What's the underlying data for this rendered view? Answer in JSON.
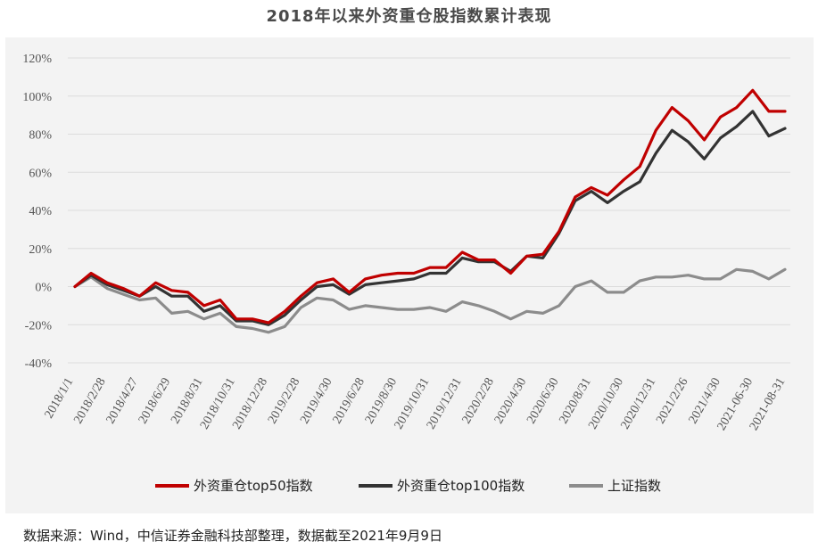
{
  "title": "2018年以来外资重仓股指数累计表现",
  "source": "数据来源：Wind，中信证券金融科技部整理，数据截至2021年9月9日",
  "chart_data": {
    "type": "line",
    "y_ticks": [
      "120%",
      "100%",
      "80%",
      "60%",
      "40%",
      "20%",
      "0%",
      "-20%",
      "-40%"
    ],
    "ylim": [
      -40,
      120
    ],
    "x_tick_labels": [
      "2018/1/1",
      "2018/2/28",
      "2018/4/27",
      "2018/6/29",
      "2018/8/31",
      "2018/10/31",
      "2018/12/28",
      "2019/2/28",
      "2019/4/30",
      "2019/6/28",
      "2019/8/30",
      "2019/10/31",
      "2019/12/31",
      "2020/2/28",
      "2020/4/30",
      "2020/6/30",
      "2020/8/31",
      "2020/10/30",
      "2020/12/31",
      "2021/2/26",
      "2021/4/30",
      "2021-06-30",
      "2021-08-31"
    ],
    "grid": true,
    "legend_position": "bottom",
    "series": [
      {
        "name": "外资重仓top50指数",
        "color": "#c00000",
        "values": [
          0,
          7,
          2,
          -1,
          -5,
          2,
          -2,
          -3,
          -10,
          -7,
          -17,
          -17,
          -19,
          -13,
          -5,
          2,
          4,
          -3,
          4,
          6,
          7,
          7,
          10,
          10,
          18,
          14,
          14,
          7,
          16,
          17,
          29,
          47,
          52,
          48,
          56,
          63,
          82,
          94,
          87,
          77,
          89,
          94,
          103,
          92,
          92
        ]
      },
      {
        "name": "外资重仓top100指数",
        "color": "#333333",
        "values": [
          0,
          6,
          1,
          -2,
          -5,
          0,
          -5,
          -5,
          -13,
          -10,
          -18,
          -18,
          -20,
          -15,
          -7,
          0,
          1,
          -4,
          1,
          2,
          3,
          4,
          7,
          7,
          15,
          13,
          13,
          8,
          16,
          15,
          28,
          45,
          50,
          44,
          50,
          55,
          70,
          82,
          76,
          67,
          78,
          84,
          92,
          79,
          83
        ]
      },
      {
        "name": "上证指数",
        "color": "#8c8c8c",
        "values": [
          0,
          5,
          -1,
          -4,
          -7,
          -6,
          -14,
          -13,
          -17,
          -14,
          -21,
          -22,
          -24,
          -21,
          -11,
          -6,
          -7,
          -12,
          -10,
          -11,
          -12,
          -12,
          -11,
          -13,
          -8,
          -10,
          -13,
          -17,
          -13,
          -14,
          -10,
          0,
          3,
          -3,
          -3,
          3,
          5,
          5,
          6,
          4,
          4,
          9,
          8,
          4,
          9
        ]
      }
    ]
  }
}
